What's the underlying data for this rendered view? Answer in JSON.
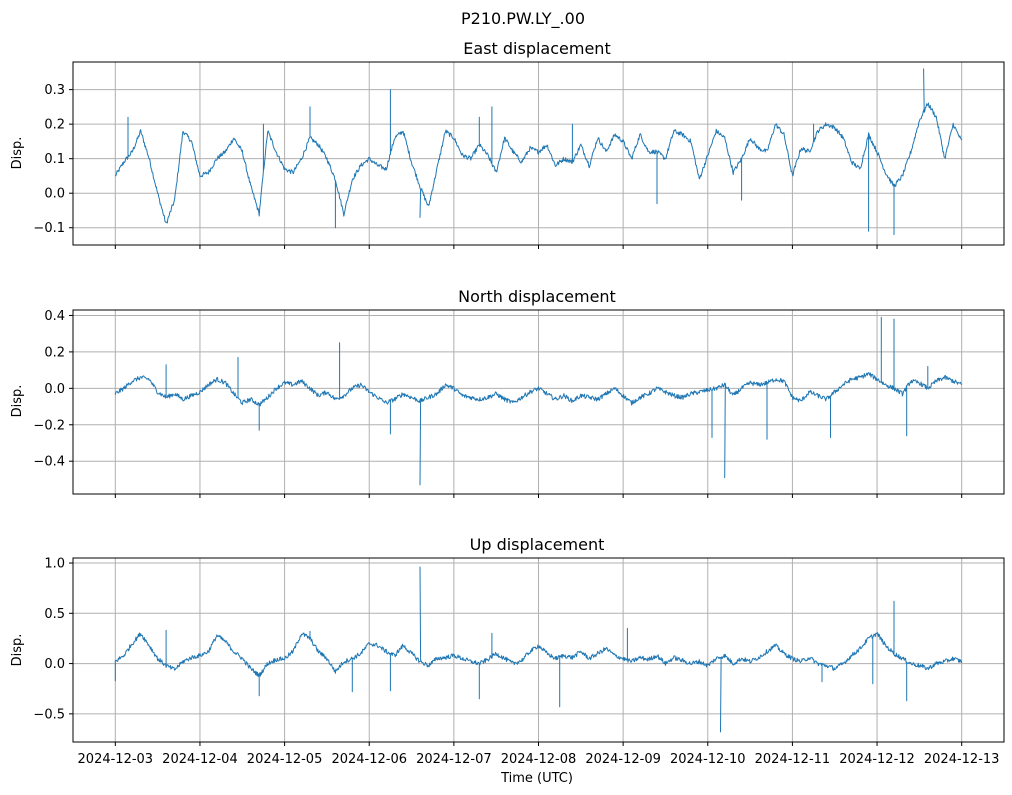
{
  "figure": {
    "suptitle": "P210.PW.LY_.00",
    "xlabel": "Time (UTC)"
  },
  "chart_data": [
    {
      "type": "line",
      "title": "East displacement",
      "ylabel": "Disp.",
      "ylim": [
        -0.15,
        0.38
      ],
      "yticks": [
        -0.1,
        0.0,
        0.1,
        0.2,
        0.3
      ],
      "ytick_labels": [
        "−0.1",
        "0.0",
        "0.1",
        "0.2",
        "0.3"
      ],
      "xlim": [
        -0.5,
        10.5
      ],
      "x_tick_labels": [
        "2024-12-03",
        "2024-12-04",
        "2024-12-05",
        "2024-12-06",
        "2024-12-07",
        "2024-12-08",
        "2024-12-09",
        "2024-12-10",
        "2024-12-11",
        "2024-12-12",
        "2024-12-13"
      ],
      "show_x_tick_labels": false,
      "grid": true,
      "color": "#1f77b4",
      "series": [
        {
          "name": "East",
          "x_days": [
            0,
            0.1,
            0.2,
            0.3,
            0.4,
            0.5,
            0.6,
            0.7,
            0.8,
            0.9,
            1.0,
            1.1,
            1.2,
            1.3,
            1.4,
            1.5,
            1.6,
            1.7,
            1.8,
            1.9,
            2.0,
            2.1,
            2.2,
            2.3,
            2.4,
            2.5,
            2.6,
            2.7,
            2.8,
            2.9,
            3.0,
            3.1,
            3.2,
            3.3,
            3.4,
            3.5,
            3.6,
            3.7,
            3.8,
            3.9,
            4.0,
            4.1,
            4.2,
            4.3,
            4.4,
            4.5,
            4.6,
            4.7,
            4.8,
            4.9,
            5.0,
            5.1,
            5.2,
            5.3,
            5.4,
            5.5,
            5.6,
            5.7,
            5.8,
            5.9,
            6.0,
            6.1,
            6.2,
            6.3,
            6.4,
            6.5,
            6.6,
            6.7,
            6.8,
            6.9,
            7.0,
            7.1,
            7.2,
            7.3,
            7.4,
            7.5,
            7.6,
            7.7,
            7.8,
            7.9,
            8.0,
            8.1,
            8.2,
            8.3,
            8.4,
            8.5,
            8.6,
            8.7,
            8.8,
            8.9,
            9.0,
            9.1,
            9.2,
            9.3,
            9.4,
            9.5,
            9.6,
            9.7,
            9.8,
            9.9,
            10.0
          ],
          "values": [
            0.05,
            0.09,
            0.12,
            0.18,
            0.1,
            0.0,
            -0.09,
            -0.02,
            0.18,
            0.15,
            0.05,
            0.06,
            0.1,
            0.12,
            0.16,
            0.12,
            0.02,
            -0.06,
            0.18,
            0.12,
            0.07,
            0.06,
            0.1,
            0.16,
            0.14,
            0.1,
            0.04,
            -0.06,
            0.04,
            0.08,
            0.1,
            0.08,
            0.07,
            0.16,
            0.18,
            0.09,
            0.02,
            -0.04,
            0.07,
            0.18,
            0.16,
            0.11,
            0.1,
            0.14,
            0.11,
            0.06,
            0.16,
            0.12,
            0.09,
            0.13,
            0.12,
            0.14,
            0.08,
            0.1,
            0.09,
            0.14,
            0.08,
            0.16,
            0.12,
            0.17,
            0.15,
            0.1,
            0.17,
            0.12,
            0.12,
            0.1,
            0.18,
            0.17,
            0.15,
            0.04,
            0.11,
            0.18,
            0.16,
            0.06,
            0.1,
            0.16,
            0.13,
            0.12,
            0.2,
            0.17,
            0.05,
            0.13,
            0.12,
            0.18,
            0.2,
            0.19,
            0.16,
            0.09,
            0.07,
            0.17,
            0.12,
            0.06,
            0.02,
            0.05,
            0.12,
            0.21,
            0.26,
            0.22,
            0.1,
            0.2,
            0.15
          ],
          "spikes": [
            [
              0.15,
              0.22
            ],
            [
              1.75,
              0.2
            ],
            [
              2.3,
              0.25
            ],
            [
              2.6,
              -0.1
            ],
            [
              3.25,
              0.3
            ],
            [
              3.6,
              -0.07
            ],
            [
              4.3,
              0.22
            ],
            [
              4.45,
              0.25
            ],
            [
              5.4,
              0.2
            ],
            [
              6.4,
              -0.03
            ],
            [
              7.4,
              -0.02
            ],
            [
              8.25,
              0.2
            ],
            [
              8.9,
              -0.11
            ],
            [
              9.2,
              -0.12
            ],
            [
              9.55,
              0.36
            ]
          ]
        }
      ]
    },
    {
      "type": "line",
      "title": "North displacement",
      "ylabel": "Disp.",
      "ylim": [
        -0.58,
        0.43
      ],
      "yticks": [
        -0.4,
        -0.2,
        0.0,
        0.2,
        0.4
      ],
      "ytick_labels": [
        "−0.4",
        "−0.2",
        "0.0",
        "0.2",
        "0.4"
      ],
      "xlim": [
        -0.5,
        10.5
      ],
      "x_tick_labels": [
        "2024-12-03",
        "2024-12-04",
        "2024-12-05",
        "2024-12-06",
        "2024-12-07",
        "2024-12-08",
        "2024-12-09",
        "2024-12-10",
        "2024-12-11",
        "2024-12-12",
        "2024-12-13"
      ],
      "show_x_tick_labels": false,
      "grid": true,
      "color": "#1f77b4",
      "series": [
        {
          "name": "North",
          "x_days": [
            0,
            0.1,
            0.2,
            0.3,
            0.4,
            0.5,
            0.6,
            0.7,
            0.8,
            0.9,
            1.0,
            1.1,
            1.2,
            1.3,
            1.4,
            1.5,
            1.6,
            1.7,
            1.8,
            1.9,
            2.0,
            2.1,
            2.2,
            2.3,
            2.4,
            2.5,
            2.6,
            2.7,
            2.8,
            2.9,
            3.0,
            3.1,
            3.2,
            3.3,
            3.4,
            3.5,
            3.6,
            3.7,
            3.8,
            3.9,
            4.0,
            4.1,
            4.2,
            4.3,
            4.4,
            4.5,
            4.6,
            4.7,
            4.8,
            4.9,
            5.0,
            5.1,
            5.2,
            5.3,
            5.4,
            5.5,
            5.6,
            5.7,
            5.8,
            5.9,
            6.0,
            6.1,
            6.2,
            6.3,
            6.4,
            6.5,
            6.6,
            6.7,
            6.8,
            6.9,
            7.0,
            7.1,
            7.2,
            7.3,
            7.4,
            7.5,
            7.6,
            7.7,
            7.8,
            7.9,
            8.0,
            8.1,
            8.2,
            8.3,
            8.4,
            8.5,
            8.6,
            8.7,
            8.8,
            8.9,
            9.0,
            9.1,
            9.2,
            9.3,
            9.4,
            9.5,
            9.6,
            9.7,
            9.8,
            9.9,
            10.0
          ],
          "values": [
            -0.03,
            0.0,
            0.04,
            0.06,
            0.05,
            -0.02,
            -0.05,
            -0.03,
            -0.06,
            -0.04,
            -0.02,
            0.02,
            0.05,
            0.03,
            -0.03,
            -0.08,
            -0.06,
            -0.09,
            -0.05,
            0.0,
            0.03,
            0.02,
            0.04,
            0.0,
            -0.04,
            -0.02,
            -0.06,
            -0.04,
            0.0,
            0.02,
            -0.02,
            -0.05,
            -0.08,
            -0.06,
            -0.03,
            -0.05,
            -0.07,
            -0.05,
            -0.03,
            0.02,
            0.0,
            -0.04,
            -0.05,
            -0.06,
            -0.05,
            -0.03,
            -0.06,
            -0.08,
            -0.05,
            -0.02,
            0.0,
            -0.03,
            -0.06,
            -0.04,
            -0.07,
            -0.04,
            -0.05,
            -0.06,
            -0.03,
            0.0,
            -0.04,
            -0.08,
            -0.05,
            -0.03,
            0.0,
            -0.02,
            -0.04,
            -0.05,
            -0.03,
            -0.02,
            -0.01,
            0.0,
            0.02,
            -0.04,
            0.0,
            0.03,
            0.02,
            0.03,
            0.05,
            0.04,
            -0.05,
            -0.07,
            -0.02,
            -0.04,
            -0.06,
            -0.02,
            0.02,
            0.05,
            0.06,
            0.08,
            0.05,
            0.02,
            0.0,
            -0.03,
            0.04,
            0.03,
            0.0,
            0.04,
            0.06,
            0.04,
            0.02
          ],
          "spikes": [
            [
              0.6,
              0.13
            ],
            [
              1.45,
              0.17
            ],
            [
              1.7,
              -0.23
            ],
            [
              2.65,
              0.25
            ],
            [
              3.25,
              -0.25
            ],
            [
              3.6,
              -0.53
            ],
            [
              7.05,
              -0.27
            ],
            [
              7.2,
              -0.49
            ],
            [
              7.7,
              -0.28
            ],
            [
              8.45,
              -0.27
            ],
            [
              9.05,
              0.39
            ],
            [
              9.2,
              0.38
            ],
            [
              9.35,
              -0.26
            ],
            [
              9.6,
              0.12
            ]
          ]
        }
      ]
    },
    {
      "type": "line",
      "title": "Up displacement",
      "ylabel": "Disp.",
      "ylim": [
        -0.78,
        1.05
      ],
      "yticks": [
        -0.5,
        0.0,
        0.5,
        1.0
      ],
      "ytick_labels": [
        "−0.5",
        "0.0",
        "0.5",
        "1.0"
      ],
      "xlim": [
        -0.5,
        10.5
      ],
      "x_tick_labels": [
        "2024-12-03",
        "2024-12-04",
        "2024-12-05",
        "2024-12-06",
        "2024-12-07",
        "2024-12-08",
        "2024-12-09",
        "2024-12-10",
        "2024-12-11",
        "2024-12-12",
        "2024-12-13"
      ],
      "show_x_tick_labels": true,
      "grid": true,
      "color": "#1f77b4",
      "series": [
        {
          "name": "Up",
          "x_days": [
            0,
            0.1,
            0.2,
            0.3,
            0.4,
            0.5,
            0.6,
            0.7,
            0.8,
            0.9,
            1.0,
            1.1,
            1.2,
            1.3,
            1.4,
            1.5,
            1.6,
            1.7,
            1.8,
            1.9,
            2.0,
            2.1,
            2.2,
            2.3,
            2.4,
            2.5,
            2.6,
            2.7,
            2.8,
            2.9,
            3.0,
            3.1,
            3.2,
            3.3,
            3.4,
            3.5,
            3.6,
            3.7,
            3.8,
            3.9,
            4.0,
            4.1,
            4.2,
            4.3,
            4.4,
            4.5,
            4.6,
            4.7,
            4.8,
            4.9,
            5.0,
            5.1,
            5.2,
            5.3,
            5.4,
            5.5,
            5.6,
            5.7,
            5.8,
            5.9,
            6.0,
            6.1,
            6.2,
            6.3,
            6.4,
            6.5,
            6.6,
            6.7,
            6.8,
            6.9,
            7.0,
            7.1,
            7.2,
            7.3,
            7.4,
            7.5,
            7.6,
            7.7,
            7.8,
            7.9,
            8.0,
            8.1,
            8.2,
            8.3,
            8.4,
            8.5,
            8.6,
            8.7,
            8.8,
            8.9,
            9.0,
            9.1,
            9.2,
            9.3,
            9.4,
            9.5,
            9.6,
            9.7,
            9.8,
            9.9,
            10.0
          ],
          "values": [
            0.02,
            0.08,
            0.2,
            0.3,
            0.18,
            0.05,
            -0.02,
            -0.06,
            0.02,
            0.06,
            0.08,
            0.12,
            0.28,
            0.22,
            0.12,
            0.05,
            -0.05,
            -0.12,
            0.0,
            0.04,
            0.05,
            0.12,
            0.3,
            0.25,
            0.12,
            0.05,
            -0.08,
            0.02,
            0.05,
            0.1,
            0.2,
            0.18,
            0.12,
            0.08,
            0.18,
            0.1,
            0.02,
            -0.02,
            0.05,
            0.06,
            0.08,
            0.05,
            0.02,
            0.0,
            0.04,
            0.1,
            0.05,
            0.0,
            0.03,
            0.12,
            0.18,
            0.1,
            0.05,
            0.08,
            0.06,
            0.12,
            0.05,
            0.1,
            0.15,
            0.08,
            0.05,
            0.02,
            0.06,
            0.04,
            0.08,
            0.0,
            0.06,
            0.03,
            0.0,
            0.02,
            -0.02,
            0.05,
            0.08,
            0.0,
            0.05,
            0.02,
            0.06,
            0.12,
            0.18,
            0.1,
            0.05,
            0.02,
            0.06,
            0.0,
            -0.02,
            -0.05,
            0.0,
            0.08,
            0.15,
            0.25,
            0.3,
            0.18,
            0.1,
            0.05,
            0.0,
            -0.02,
            -0.05,
            0.0,
            0.02,
            0.05,
            0.02
          ],
          "spikes": [
            [
              0.0,
              -0.17
            ],
            [
              0.6,
              0.33
            ],
            [
              1.7,
              -0.32
            ],
            [
              2.3,
              0.32
            ],
            [
              2.8,
              -0.28
            ],
            [
              3.25,
              -0.27
            ],
            [
              3.6,
              0.96
            ],
            [
              4.3,
              -0.35
            ],
            [
              4.45,
              0.3
            ],
            [
              5.25,
              -0.43
            ],
            [
              6.05,
              0.35
            ],
            [
              7.15,
              -0.68
            ],
            [
              8.35,
              -0.18
            ],
            [
              8.95,
              -0.2
            ],
            [
              9.2,
              0.62
            ],
            [
              9.35,
              -0.37
            ]
          ]
        }
      ]
    }
  ]
}
